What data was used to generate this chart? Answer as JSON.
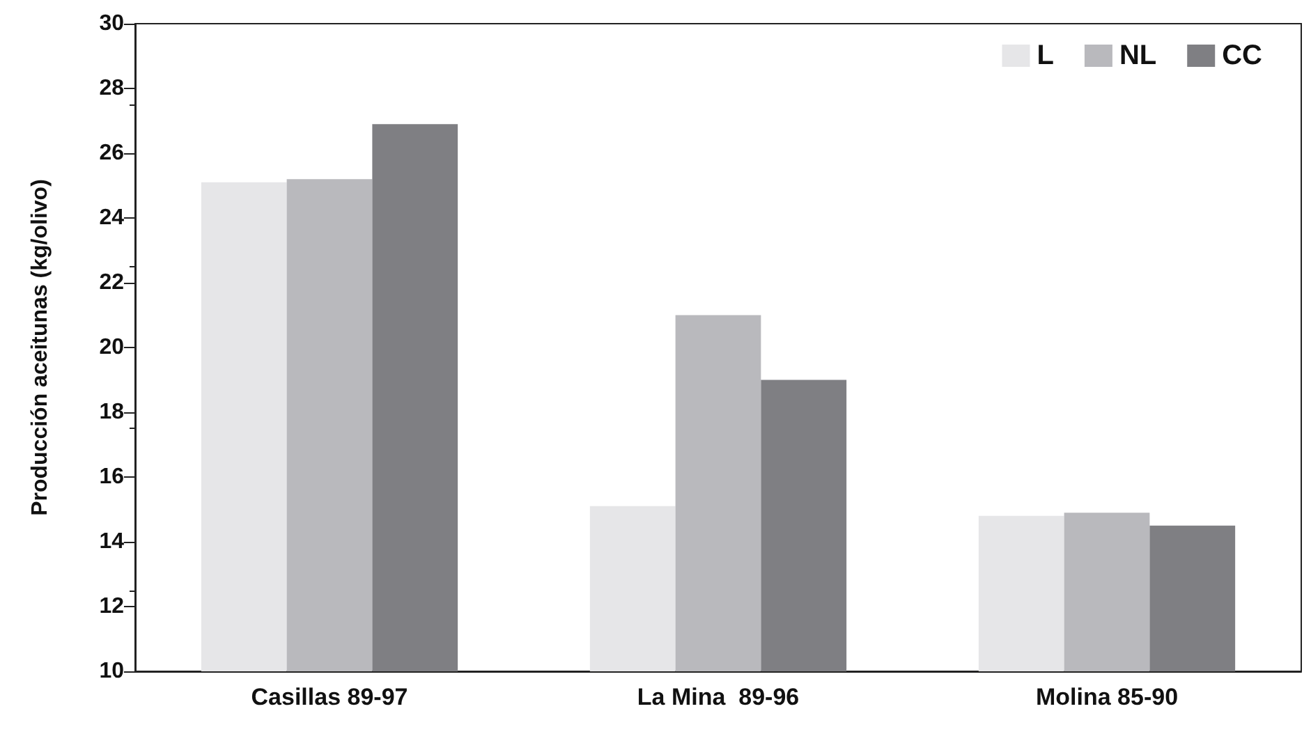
{
  "chart_data": {
    "type": "bar",
    "ylabel": "Producción aceitunas (kg/olivo)",
    "categories": [
      "Casillas 89-97",
      "La Mina  89-96",
      "Molina 85-90"
    ],
    "series": [
      {
        "name": "L",
        "color": "#e6e6e8",
        "values": [
          25.1,
          15.1,
          14.8
        ]
      },
      {
        "name": "NL",
        "color": "#b9b9bd",
        "values": [
          25.2,
          21.0,
          14.9
        ]
      },
      {
        "name": "CC",
        "color": "#7f7f83",
        "values": [
          26.9,
          19.0,
          14.5
        ]
      }
    ],
    "ylim": [
      10,
      30
    ],
    "yticks": [
      10,
      12,
      14,
      16,
      18,
      20,
      22,
      24,
      26,
      28,
      30
    ],
    "grid": false,
    "legend": "top right"
  }
}
